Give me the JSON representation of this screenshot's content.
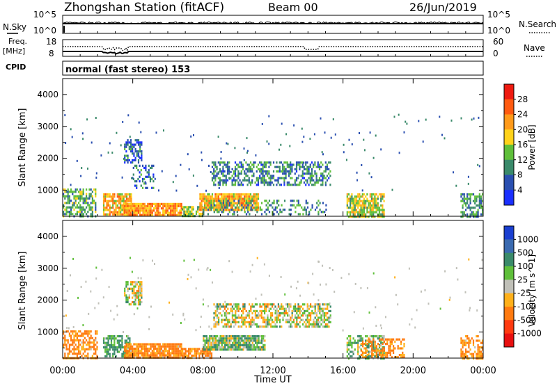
{
  "header": {
    "station": "Zhongshan Station (fitACF)",
    "beam": "Beam 00",
    "date": "26/Jun/2019"
  },
  "panels": {
    "nsky": {
      "label": "N.Sky",
      "ticks": [
        "10^5",
        "10^0"
      ]
    },
    "nsearch": {
      "label": "N.Search",
      "ticks": [
        "10^5",
        "10^0"
      ]
    },
    "freq": {
      "label_line1": "Freq.",
      "label_line2": "[MHz]",
      "ticks": [
        "18",
        "8"
      ]
    },
    "nave": {
      "label": "Nave",
      "ticks": [
        "60",
        "0"
      ]
    },
    "cpid": {
      "label": "CPID",
      "mode": "normal (fast stereo) 153"
    }
  },
  "colors": {
    "power_scale": [
      "#1a2fff",
      "#2a4fb0",
      "#3a8a6a",
      "#5fbf3a",
      "#ffd21a",
      "#ff9a1a",
      "#ff5a10",
      "#ee1a10"
    ],
    "velocity_scale": [
      "#1a3fd0",
      "#3a6ab0",
      "#3a8a6a",
      "#5fbf3a",
      "#c0c0b8",
      "#ffb01a",
      "#ff7a10",
      "#ff3a10",
      "#e81010"
    ]
  },
  "chart_data": [
    {
      "type": "heatmap",
      "title": "Power",
      "ylabel": "Slant Range [km]",
      "xlabel": "",
      "ylim": [
        180,
        4500
      ],
      "xlim": [
        "00:00",
        "24:00"
      ],
      "y_ticks": [
        "1000",
        "2000",
        "3000",
        "4000"
      ],
      "x_ticks": [],
      "colorbar": {
        "label": "Power [dB]",
        "ticks": [
          "4",
          "8",
          "12",
          "16",
          "20",
          "24",
          "28"
        ],
        "range": [
          0,
          32
        ]
      },
      "regions": [
        {
          "t0": 0.0,
          "t1": 1.9,
          "r0": 200,
          "r1": 1050,
          "level": 12,
          "density": 0.55
        },
        {
          "t0": 2.3,
          "t1": 3.9,
          "r0": 250,
          "r1": 900,
          "level": 20,
          "density": 0.8
        },
        {
          "t0": 3.5,
          "t1": 6.8,
          "r0": 190,
          "r1": 600,
          "level": 22,
          "density": 0.9
        },
        {
          "t0": 3.5,
          "t1": 4.5,
          "r0": 1900,
          "r1": 2600,
          "level": 7,
          "density": 0.6
        },
        {
          "t0": 4.0,
          "t1": 5.2,
          "r0": 1100,
          "r1": 1800,
          "level": 8,
          "density": 0.4
        },
        {
          "t0": 6.8,
          "t1": 8.0,
          "r0": 190,
          "r1": 500,
          "level": 14,
          "density": 0.7
        },
        {
          "t0": 7.8,
          "t1": 11.2,
          "r0": 350,
          "r1": 900,
          "level": 20,
          "density": 0.9
        },
        {
          "t0": 8.5,
          "t1": 15.3,
          "r0": 1150,
          "r1": 1900,
          "level": 9,
          "density": 0.55
        },
        {
          "t0": 8.0,
          "t1": 15.0,
          "r0": 250,
          "r1": 700,
          "level": 10,
          "density": 0.3
        },
        {
          "t0": 16.2,
          "t1": 18.3,
          "r0": 190,
          "r1": 900,
          "level": 16,
          "density": 0.75
        },
        {
          "t0": 22.7,
          "t1": 24.0,
          "r0": 200,
          "r1": 900,
          "level": 10,
          "density": 0.5
        }
      ]
    },
    {
      "type": "heatmap",
      "title": "Velocity",
      "ylabel": "Slant Range [km]",
      "xlabel": "Time UT",
      "ylim": [
        180,
        4500
      ],
      "xlim": [
        "00:00",
        "24:00"
      ],
      "y_ticks": [
        "1000",
        "2000",
        "3000",
        "4000"
      ],
      "x_ticks": [
        "00:00",
        "04:00",
        "08:00",
        "12:00",
        "16:00",
        "20:00",
        "00:00"
      ],
      "colorbar": {
        "label": "Velocity [m s^-1]",
        "ticks": [
          "1000",
          "500",
          "100",
          "25",
          "-25",
          "-100",
          "-500",
          "-1000"
        ],
        "range": [
          -1200,
          1200
        ]
      },
      "regions": [
        {
          "t0": 0.0,
          "t1": 2.0,
          "r0": 200,
          "r1": 1050,
          "level": -150,
          "density": 0.55
        },
        {
          "t0": 2.3,
          "t1": 3.8,
          "r0": 250,
          "r1": 900,
          "level": 150,
          "density": 0.6
        },
        {
          "t0": 3.5,
          "t1": 6.8,
          "r0": 190,
          "r1": 650,
          "level": -150,
          "density": 0.9
        },
        {
          "t0": 3.5,
          "t1": 4.5,
          "r0": 1900,
          "r1": 2600,
          "level": 0,
          "density": 0.6
        },
        {
          "t0": 6.8,
          "t1": 8.5,
          "r0": 190,
          "r1": 500,
          "level": -150,
          "density": 0.8
        },
        {
          "t0": 8.0,
          "t1": 11.5,
          "r0": 450,
          "r1": 900,
          "level": 60,
          "density": 0.9
        },
        {
          "t0": 8.6,
          "t1": 15.3,
          "r0": 1150,
          "r1": 1900,
          "level": 0,
          "density": 0.6
        },
        {
          "t0": 16.2,
          "t1": 18.3,
          "r0": 190,
          "r1": 900,
          "level": 80,
          "density": 0.6
        },
        {
          "t0": 17.0,
          "t1": 19.5,
          "r0": 190,
          "r1": 800,
          "level": -150,
          "density": 0.5
        },
        {
          "t0": 22.7,
          "t1": 24.0,
          "r0": 200,
          "r1": 900,
          "level": -150,
          "density": 0.5
        }
      ]
    }
  ]
}
